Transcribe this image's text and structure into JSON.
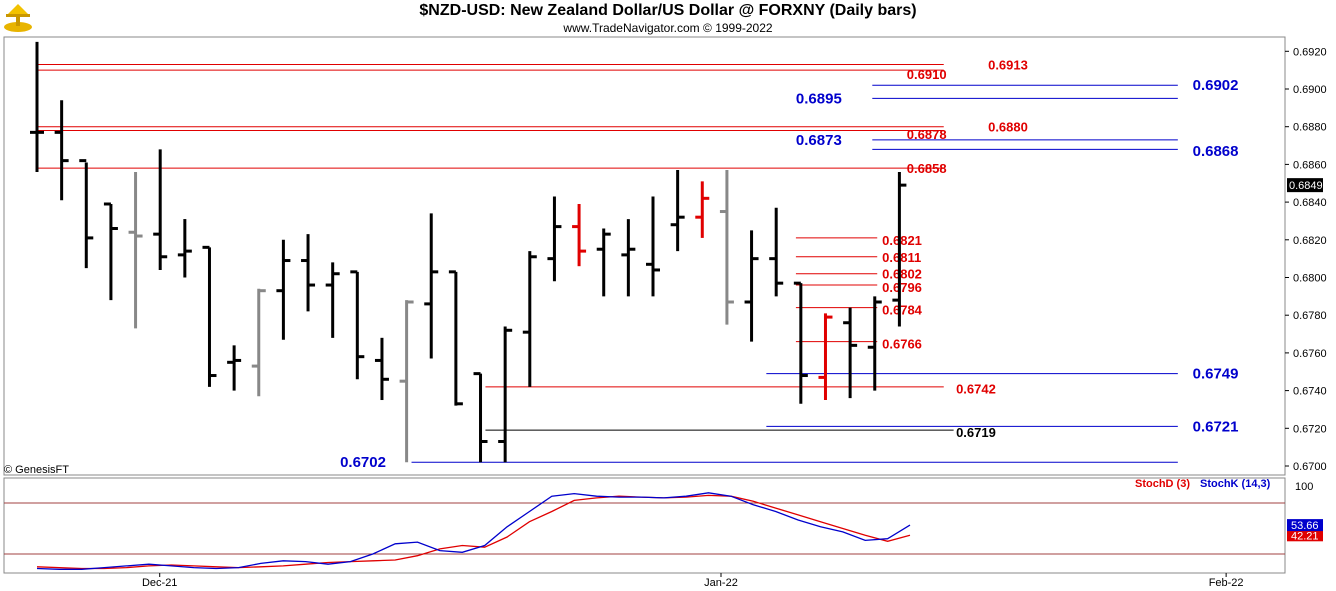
{
  "header": {
    "title": "$NZD-USD:  New Zealand Dollar/US Dollar @ FORXNY  (Daily bars)",
    "subtitle": "www.TradeNavigator.com © 1999-2022",
    "watermark": "© GenesisFT"
  },
  "colors": {
    "bar_normal": "#000000",
    "bar_grey": "#888888",
    "bar_red": "#e00000",
    "level_red": "#e00000",
    "level_blue": "#0000cc",
    "level_black": "#000000",
    "stoch_d": "#e00000",
    "stoch_k": "#0000cc",
    "price_tag_bg": "#000000"
  },
  "chart_data": [
    {
      "type": "ohlc-bar",
      "title": "$NZD-USD:  New Zealand Dollar/US Dollar @ FORXNY  (Daily bars)",
      "ylim": [
        0.6692,
        0.6928
      ],
      "y_ticks": [
        "0.6920",
        "0.6900",
        "0.6880",
        "0.6860",
        "0.6840",
        "0.6820",
        "0.6800",
        "0.6780",
        "0.6760",
        "0.6740",
        "0.6720",
        "0.6700"
      ],
      "x_ticks": [
        {
          "label": "Dec-21",
          "bar": 4.98
        },
        {
          "label": "Jan-22",
          "bar": 27.76
        },
        {
          "label": "Feb-22",
          "bar": 48.26
        }
      ],
      "last_price": "0.6849",
      "bars": [
        {
          "high": 0.6925,
          "low": 0.6856,
          "open": 0.6877,
          "close": 0.6877,
          "color": "black"
        },
        {
          "high": 0.6894,
          "low": 0.6841,
          "open": 0.6877,
          "close": 0.6862,
          "color": "black"
        },
        {
          "high": 0.6861,
          "low": 0.6805,
          "open": 0.6862,
          "close": 0.6821,
          "color": "black"
        },
        {
          "high": 0.6839,
          "low": 0.6788,
          "open": 0.6839,
          "close": 0.6826,
          "color": "black"
        },
        {
          "high": 0.6856,
          "low": 0.6773,
          "open": 0.6824,
          "close": 0.6822,
          "color": "grey"
        },
        {
          "high": 0.6868,
          "low": 0.6804,
          "open": 0.6823,
          "close": 0.6811,
          "color": "black"
        },
        {
          "high": 0.6831,
          "low": 0.68,
          "open": 0.6812,
          "close": 0.6814,
          "color": "black"
        },
        {
          "high": 0.6816,
          "low": 0.6742,
          "open": 0.6816,
          "close": 0.6748,
          "color": "black"
        },
        {
          "high": 0.6764,
          "low": 0.674,
          "open": 0.6755,
          "close": 0.6756,
          "color": "black"
        },
        {
          "high": 0.6794,
          "low": 0.6737,
          "open": 0.6753,
          "close": 0.6793,
          "color": "grey"
        },
        {
          "high": 0.682,
          "low": 0.6767,
          "open": 0.6793,
          "close": 0.6809,
          "color": "black"
        },
        {
          "high": 0.6823,
          "low": 0.6782,
          "open": 0.6809,
          "close": 0.6796,
          "color": "black"
        },
        {
          "high": 0.6808,
          "low": 0.6768,
          "open": 0.6796,
          "close": 0.6802,
          "color": "black"
        },
        {
          "high": 0.6803,
          "low": 0.6746,
          "open": 0.6803,
          "close": 0.6758,
          "color": "black"
        },
        {
          "high": 0.6768,
          "low": 0.6735,
          "open": 0.6756,
          "close": 0.6746,
          "color": "black"
        },
        {
          "high": 0.6788,
          "low": 0.6702,
          "open": 0.6745,
          "close": 0.6787,
          "color": "grey"
        },
        {
          "high": 0.6834,
          "low": 0.6757,
          "open": 0.6786,
          "close": 0.6803,
          "color": "black"
        },
        {
          "high": 0.6803,
          "low": 0.6732,
          "open": 0.6803,
          "close": 0.6733,
          "color": "black"
        },
        {
          "high": 0.6749,
          "low": 0.6702,
          "open": 0.6749,
          "close": 0.6713,
          "color": "black"
        },
        {
          "high": 0.6774,
          "low": 0.6702,
          "open": 0.6713,
          "close": 0.6772,
          "color": "black"
        },
        {
          "high": 0.6814,
          "low": 0.6742,
          "open": 0.6771,
          "close": 0.6811,
          "color": "black"
        },
        {
          "high": 0.6843,
          "low": 0.6798,
          "open": 0.681,
          "close": 0.6827,
          "color": "black"
        },
        {
          "high": 0.6839,
          "low": 0.6806,
          "open": 0.6827,
          "close": 0.6814,
          "color": "red"
        },
        {
          "high": 0.6826,
          "low": 0.679,
          "open": 0.6815,
          "close": 0.6823,
          "color": "black"
        },
        {
          "high": 0.6831,
          "low": 0.679,
          "open": 0.6812,
          "close": 0.6815,
          "color": "black"
        },
        {
          "high": 0.6843,
          "low": 0.679,
          "open": 0.6807,
          "close": 0.6804,
          "color": "black"
        },
        {
          "high": 0.6857,
          "low": 0.6814,
          "open": 0.6828,
          "close": 0.6832,
          "color": "black"
        },
        {
          "high": 0.6851,
          "low": 0.6821,
          "open": 0.6832,
          "close": 0.6842,
          "color": "red"
        },
        {
          "high": 0.6857,
          "low": 0.6775,
          "open": 0.6835,
          "close": 0.6787,
          "color": "grey"
        },
        {
          "high": 0.6825,
          "low": 0.6766,
          "open": 0.6787,
          "close": 0.681,
          "color": "black"
        },
        {
          "high": 0.6837,
          "low": 0.679,
          "open": 0.681,
          "close": 0.6797,
          "color": "black"
        },
        {
          "high": 0.6797,
          "low": 0.6733,
          "open": 0.6797,
          "close": 0.6748,
          "color": "black"
        },
        {
          "high": 0.6781,
          "low": 0.6735,
          "open": 0.6747,
          "close": 0.6779,
          "color": "red"
        },
        {
          "high": 0.6784,
          "low": 0.6736,
          "open": 0.6776,
          "close": 0.6764,
          "color": "black"
        },
        {
          "high": 0.679,
          "low": 0.674,
          "open": 0.6763,
          "close": 0.6787,
          "color": "black"
        },
        {
          "high": 0.6856,
          "low": 0.6774,
          "open": 0.6788,
          "close": 0.6849,
          "color": "black"
        }
      ],
      "levels": [
        {
          "value": 0.6913,
          "label": "0.6913",
          "color": "red",
          "from": 0,
          "to": 36.8,
          "label_bar": 38.6,
          "label_y": 0.6913
        },
        {
          "value": 0.691,
          "label": "0.6910",
          "color": "red",
          "from": 0,
          "to": 36.8,
          "label_bar": 35.3,
          "label_y": 0.6908
        },
        {
          "value": 0.6902,
          "label": "0.6902",
          "color": "blue",
          "from": 33.9,
          "to": 46.3,
          "label_bar": 46.9,
          "label_y": 0.6902
        },
        {
          "value": 0.6895,
          "label": "0.6895",
          "color": "blue",
          "from": 33.9,
          "to": 46.3,
          "label_bar": 30.8,
          "label_y": 0.6895
        },
        {
          "value": 0.688,
          "label": "0.6880",
          "color": "red",
          "from": 0,
          "to": 36.8,
          "label_bar": 38.6,
          "label_y": 0.688
        },
        {
          "value": 0.6878,
          "label": "0.6878",
          "color": "red",
          "from": 0,
          "to": 36.8,
          "label_bar": 35.3,
          "label_y": 0.6876
        },
        {
          "value": 0.6873,
          "label": "0.6873",
          "color": "blue",
          "from": 33.9,
          "to": 46.3,
          "label_bar": 30.8,
          "label_y": 0.6873
        },
        {
          "value": 0.6868,
          "label": "0.6868",
          "color": "blue",
          "from": 33.9,
          "to": 46.3,
          "label_bar": 46.9,
          "label_y": 0.6867
        },
        {
          "value": 0.6858,
          "label": "0.6858",
          "color": "red",
          "from": 0,
          "to": 36.8,
          "label_bar": 35.3,
          "label_y": 0.6858
        },
        {
          "value": 0.6821,
          "label": "0.6821",
          "color": "red",
          "from": 30.8,
          "to": 34.1,
          "label_bar": 34.3,
          "label_y": 0.682
        },
        {
          "value": 0.6811,
          "label": "0.6811",
          "color": "red",
          "from": 30.8,
          "to": 34.1,
          "label_bar": 34.3,
          "label_y": 0.6811
        },
        {
          "value": 0.6802,
          "label": "0.6802",
          "color": "red",
          "from": 30.8,
          "to": 34.1,
          "label_bar": 34.3,
          "label_y": 0.6802
        },
        {
          "value": 0.6796,
          "label": "0.6796",
          "color": "red",
          "from": 30.8,
          "to": 34.1,
          "label_bar": 34.3,
          "label_y": 0.6795
        },
        {
          "value": 0.6784,
          "label": "0.6784",
          "color": "red",
          "from": 30.8,
          "to": 34.1,
          "label_bar": 34.3,
          "label_y": 0.6783
        },
        {
          "value": 0.6766,
          "label": "0.6766",
          "color": "red",
          "from": 30.8,
          "to": 34.1,
          "label_bar": 34.3,
          "label_y": 0.6765
        },
        {
          "value": 0.6749,
          "label": "0.6749",
          "color": "blue",
          "from": 29.6,
          "to": 46.3,
          "label_bar": 46.9,
          "label_y": 0.6749
        },
        {
          "value": 0.6742,
          "label": "0.6742",
          "color": "red",
          "from": 18.2,
          "to": 36.8,
          "label_bar": 37.3,
          "label_y": 0.6741
        },
        {
          "value": 0.6721,
          "label": "0.6721",
          "color": "blue",
          "from": 29.6,
          "to": 46.3,
          "label_bar": 46.9,
          "label_y": 0.6721
        },
        {
          "value": 0.6719,
          "label": "0.6719",
          "color": "black",
          "from": 18.2,
          "to": 37.2,
          "label_bar": 37.3,
          "label_y": 0.6718
        },
        {
          "value": 0.6702,
          "label": "0.6702",
          "color": "blue",
          "from": 15.2,
          "to": 46.3,
          "label_bar": 12.3,
          "label_y": 0.6702
        }
      ]
    },
    {
      "type": "line",
      "legend_placement": "top-right",
      "ylim": [
        0,
        100
      ],
      "y_ticks": [
        "100"
      ],
      "reference_lines": [
        80,
        20
      ],
      "series": [
        {
          "name": "StochD (3)",
          "color": "red",
          "last_label": "42.21",
          "values": [
            5,
            4,
            3,
            3,
            4,
            6,
            7,
            6,
            5,
            4,
            5,
            6,
            8,
            10,
            11,
            12,
            13,
            18,
            26,
            30,
            28,
            40,
            58,
            70,
            83,
            86,
            88,
            87,
            86,
            87,
            89,
            88,
            82,
            74,
            66,
            58,
            50,
            42,
            35,
            42
          ]
        },
        {
          "name": "StochK (14,3)",
          "color": "blue",
          "last_label": "53.66",
          "values": [
            3,
            2,
            2,
            4,
            6,
            8,
            6,
            4,
            3,
            4,
            9,
            12,
            11,
            8,
            11,
            20,
            32,
            34,
            24,
            22,
            30,
            52,
            70,
            88,
            91,
            88,
            87,
            87,
            86,
            88,
            92,
            88,
            78,
            70,
            60,
            52,
            46,
            36,
            38,
            54
          ]
        }
      ]
    }
  ]
}
